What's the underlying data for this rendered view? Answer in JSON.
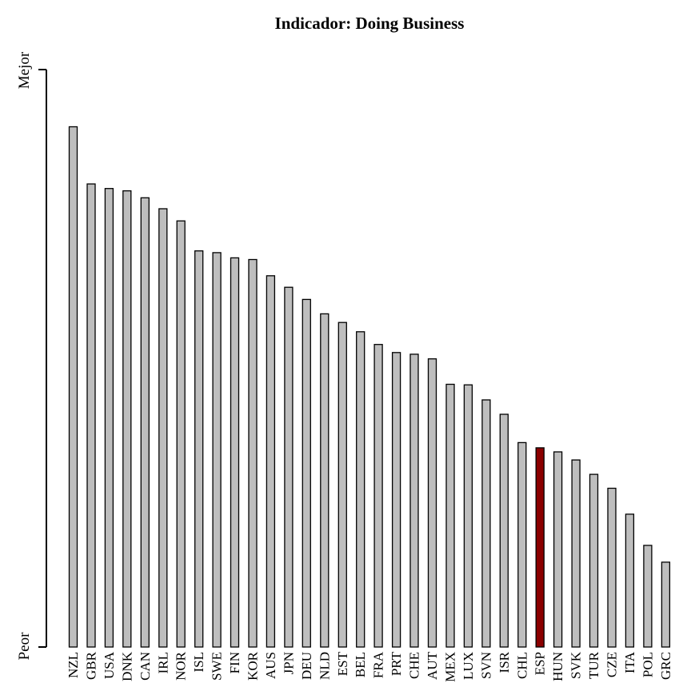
{
  "chart_data": {
    "type": "bar",
    "title": "Indicador: Doing Business",
    "ylabel_top": "Mejor",
    "ylabel_bottom": "Peor",
    "xlabel": "",
    "ylim": [
      0,
      100
    ],
    "grid": false,
    "legend": "none",
    "colors": {
      "default": "#bebebe",
      "highlight": "#8b0000",
      "stroke": "#000000"
    },
    "highlight": "ESP",
    "categories": [
      "NZL",
      "GBR",
      "USA",
      "DNK",
      "CAN",
      "IRL",
      "NOR",
      "ISL",
      "SWE",
      "FIN",
      "KOR",
      "AUS",
      "JPN",
      "DEU",
      "NLD",
      "EST",
      "BEL",
      "FRA",
      "PRT",
      "CHE",
      "AUT",
      "MEX",
      "LUX",
      "SVN",
      "ISR",
      "CHL",
      "ESP",
      "HUN",
      "SVK",
      "TUR",
      "CZE",
      "ITA",
      "POL",
      "GRC"
    ],
    "values": [
      90.1,
      80.2,
      79.4,
      79.0,
      77.8,
      75.9,
      73.8,
      68.6,
      68.3,
      67.4,
      67.1,
      64.3,
      62.3,
      60.2,
      57.7,
      56.2,
      54.6,
      52.4,
      51.0,
      50.7,
      49.9,
      45.5,
      45.4,
      42.8,
      40.3,
      35.4,
      34.5,
      33.8,
      32.4,
      29.9,
      27.5,
      23.0,
      17.6,
      14.7
    ]
  }
}
